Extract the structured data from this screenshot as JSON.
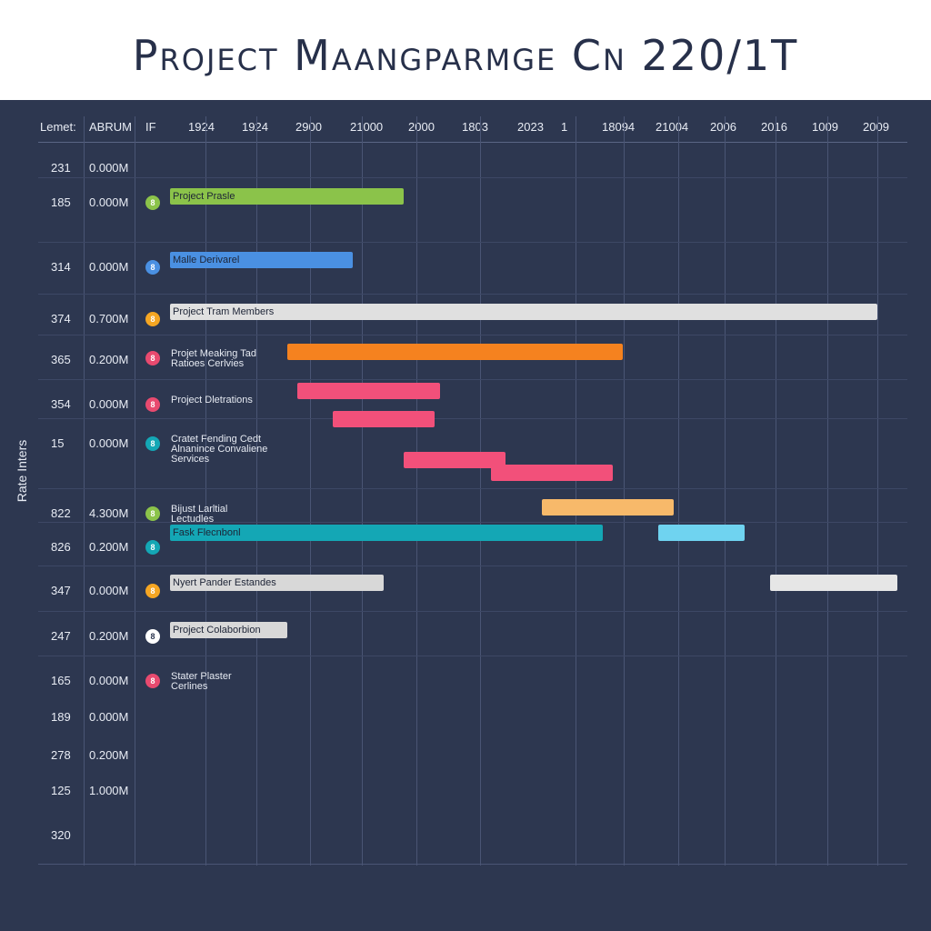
{
  "title": "Project Maangparmge Cn 220/1T",
  "y_axis_label": "Rate Inters",
  "headers": {
    "col1": "Lemet:",
    "col2": "ABRUM",
    "col3": "IF",
    "timeline": [
      "1924",
      "1924",
      "2900",
      "21000",
      "2000",
      "1803",
      "2023",
      "1",
      "18094",
      "21004",
      "2006",
      "2016",
      "1009",
      "2009"
    ]
  },
  "rows": [
    {
      "id": "231",
      "value": "0.000M"
    },
    {
      "id": "185",
      "value": "0.000M"
    },
    {
      "id": "314",
      "value": "0.000M"
    },
    {
      "id": "374",
      "value": "0.700M"
    },
    {
      "id": "365",
      "value": "0.200M"
    },
    {
      "id": "354",
      "value": "0.000M"
    },
    {
      "id": "15",
      "value": "0.000M"
    },
    {
      "id": "822",
      "value": "4.300M"
    },
    {
      "id": "826",
      "value": "0.200M"
    },
    {
      "id": "347",
      "value": "0.000M"
    },
    {
      "id": "247",
      "value": "0.200M"
    },
    {
      "id": "165",
      "value": "0.000M"
    },
    {
      "id": "189",
      "value": "0.000M"
    },
    {
      "id": "278",
      "value": "0.200M"
    },
    {
      "id": "125",
      "value": "1.000M"
    },
    {
      "id": "320",
      "value": ""
    }
  ],
  "tasks": [
    {
      "icon": "8",
      "icon_color": "#8bc34a",
      "label": "Project Prasle",
      "label_in_bar": true
    },
    {
      "icon": "8",
      "icon_color": "#4a90e2",
      "label": "Malle Derivarel",
      "label_in_bar": true
    },
    {
      "icon": "8",
      "icon_color": "#f5a623",
      "label": "Project Tram Members",
      "label_in_bar": true
    },
    {
      "icon": "8",
      "icon_color": "#e84a6f",
      "label": "Projet Meaking Tad Ratioes Cerlvies",
      "label_in_bar": false
    },
    {
      "icon": "8",
      "icon_color": "#e84a6f",
      "label": "Project Dletrations",
      "label_in_bar": false
    },
    {
      "icon": "8",
      "icon_color": "#14a7b5",
      "label": "Cratet Fending Cedt Alnanince Convaliene Services",
      "label_in_bar": false
    },
    {
      "icon": "8",
      "icon_color": "#8bc34a",
      "label": "Bijust Larltial Lectudles",
      "label_in_bar": false
    },
    {
      "icon": "8",
      "icon_color": "#14a7b5",
      "label": "Fask Flecnbonl",
      "label_in_bar": true
    },
    {
      "icon": "8",
      "icon_color": "#f5a623",
      "label": "Nyert Pander Estandes",
      "label_in_bar": true
    },
    {
      "icon": "8",
      "icon_color": "#ffffff",
      "label": "Project Colaborbion",
      "label_in_bar": true
    },
    {
      "icon": "8",
      "icon_color": "#e84a6f",
      "label": "Stater Plaster Cerlines",
      "label_in_bar": false
    }
  ],
  "chart_data": {
    "type": "gantt",
    "title": "Project Maangparmge Cn 220/1T",
    "ylabel": "Rate Inters",
    "x_ticks": [
      "1924",
      "1924",
      "2900",
      "21000",
      "2000",
      "1803",
      "2023",
      "1",
      "18094",
      "21004",
      "2006",
      "2016",
      "1009",
      "2009"
    ],
    "bars": [
      {
        "task": "Project Prasle",
        "start": 0.0,
        "end": 4.6,
        "color": "#8bc34a"
      },
      {
        "task": "Malle Derivarel",
        "start": 0.0,
        "end": 3.6,
        "color": "#4a90e2"
      },
      {
        "task": "Project Tram Members",
        "start": 0.0,
        "end": 13.9,
        "color": "#e0e0e0"
      },
      {
        "task": "Projet Meaking Tad Ratioes Cerlvies",
        "start": 2.3,
        "end": 8.9,
        "color": "#f5821f"
      },
      {
        "task": "Project Dletrations",
        "start": 2.5,
        "end": 5.3,
        "color": "#f2507a"
      },
      {
        "task": "Project Dletrations",
        "start": 3.2,
        "end": 5.2,
        "color": "#f2507a"
      },
      {
        "task": "Cratet Fending Cedt Alnanince Convaliene Services",
        "start": 4.6,
        "end": 6.6,
        "color": "#f2507a"
      },
      {
        "task": "Cratet Fending Cedt Alnanince Convaliene Services",
        "start": 6.3,
        "end": 8.7,
        "color": "#f2507a"
      },
      {
        "task": "Bijust Larltial Lectudles",
        "start": 7.3,
        "end": 9.9,
        "color": "#f7b96a"
      },
      {
        "task": "Fask Flecnbonl",
        "start": 0.0,
        "end": 8.5,
        "color": "#14a7b5"
      },
      {
        "task": "Fask Flecnbonl",
        "start": 9.6,
        "end": 11.3,
        "color": "#6fd3f0"
      },
      {
        "task": "Nyert Pander Estandes",
        "start": 0.0,
        "end": 4.2,
        "color": "#d8d8d8"
      },
      {
        "task": "Nyert Pander Estandes",
        "start": 11.8,
        "end": 14.3,
        "color": "#e6e6e6"
      },
      {
        "task": "Project Colaborbion",
        "start": 0.0,
        "end": 2.3,
        "color": "#d8d8d8"
      }
    ]
  }
}
